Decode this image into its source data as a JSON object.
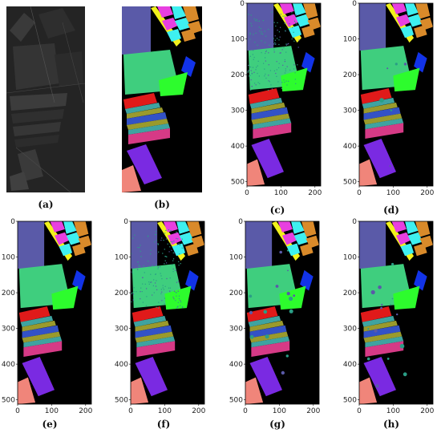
{
  "captions": [
    "(a)",
    "(b)",
    "(c)",
    "(d)",
    "(e)",
    "(f)",
    "(g)",
    "(h)"
  ],
  "axes": {
    "y_ticks": [
      "0",
      "100",
      "200",
      "300",
      "400",
      "500"
    ],
    "x_ticks": [
      "0",
      "100",
      "200"
    ],
    "y_values": [
      0,
      100,
      200,
      300,
      400,
      500
    ],
    "x_values": [
      0,
      100,
      200
    ],
    "xlim": [
      0,
      217
    ],
    "ylim": [
      512,
      0
    ]
  },
  "colors": {
    "background": "#000000",
    "meadow_slate": "#5a5aa8",
    "weeds_green": "#3fce7e",
    "fallow_yellow": "#f2f21c",
    "soil_magenta": "#e83fe0",
    "stubble_cyan": "#3ef0f0",
    "lettuce_orange": "#d98a2a",
    "bare_blue": "#1233e8",
    "bright_green": "#2dfc2d",
    "vine_red": "#e01a1a",
    "corn_teal": "#3fa3a0",
    "olive": "#9a9a2c",
    "row_blue": "#3352c6",
    "row_pink": "#d63a86",
    "vineyard_purple": "#7a2ae2",
    "salmon": "#f0857a",
    "error_teal": "#2a9e86"
  }
}
